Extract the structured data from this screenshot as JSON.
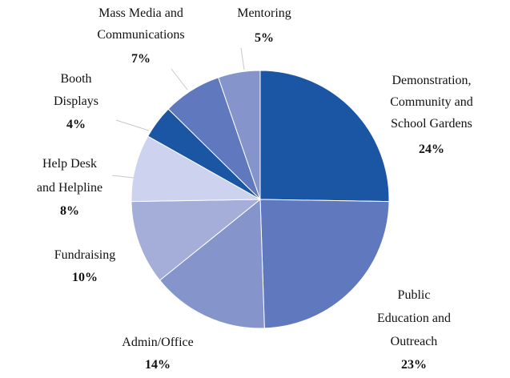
{
  "chart_data": {
    "type": "pie",
    "categories": [
      "Demonstration,\nCommunity and\nSchool Gardens",
      "Public\nEducation and\nOutreach",
      "Admin/Office",
      "Fundraising",
      "Help Desk\nand Helpline",
      "Booth\nDisplays",
      "Mass Media and\nCommunications",
      "Mentoring"
    ],
    "values": [
      24,
      23,
      14,
      10,
      8,
      4,
      7,
      5
    ],
    "value_labels": [
      "24%",
      "23%",
      "14%",
      "10%",
      "8%",
      "4%",
      "7%",
      "5%"
    ],
    "colors": [
      "#1a56a3",
      "#6078bd",
      "#8595cb",
      "#a4aed8",
      "#cdd2ee",
      "#1a56a3",
      "#6078bd",
      "#8595cb"
    ]
  }
}
